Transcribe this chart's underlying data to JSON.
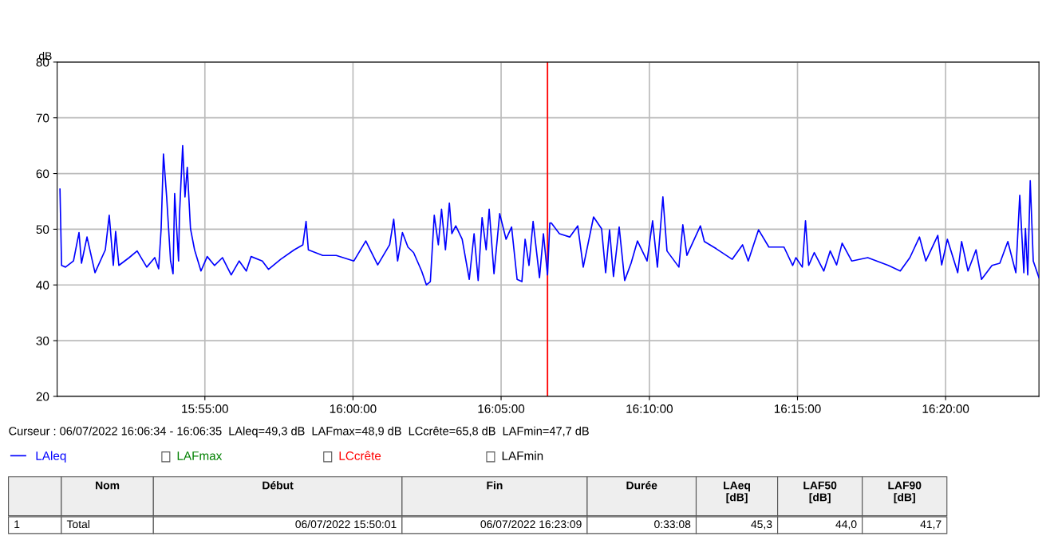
{
  "chart_data": {
    "type": "line",
    "ylabel": "dB",
    "grid": true,
    "legend": "bottom left",
    "marker": "none",
    "line_style": "solid",
    "xlim": [
      15.8336,
      16.3858
    ],
    "xticks": [
      {
        "value": 15.9167,
        "label": "15:55:00"
      },
      {
        "value": 16.0,
        "label": "16:00:00"
      },
      {
        "value": 16.0833,
        "label": "16:05:00"
      },
      {
        "value": 16.1667,
        "label": "16:10:00"
      },
      {
        "value": 16.25,
        "label": "16:15:00"
      },
      {
        "value": 16.3333,
        "label": "16:20:00"
      }
    ],
    "ylim": [
      20,
      80
    ],
    "yticks": [
      20,
      30,
      40,
      50,
      60,
      70,
      80
    ],
    "ref_lines": [
      {
        "axis": "x",
        "value": 16.1094,
        "color": "#ff0000"
      }
    ],
    "series": [
      {
        "name": "LAleq",
        "color": "#0000ff",
        "x": [
          15.8352,
          15.8361,
          15.8383,
          15.8428,
          15.8459,
          15.8473,
          15.8504,
          15.8549,
          15.8607,
          15.8629,
          15.8652,
          15.8665,
          15.8683,
          15.8741,
          15.8786,
          15.884,
          15.8885,
          15.8907,
          15.8921,
          15.8934,
          15.8952,
          15.8974,
          15.8988,
          15.8997,
          15.9019,
          15.9024,
          15.9042,
          15.9055,
          15.9068,
          15.9086,
          15.9109,
          15.9145,
          15.918,
          15.9221,
          15.9266,
          15.9315,
          15.936,
          15.94,
          15.9427,
          15.949,
          15.9525,
          15.9593,
          15.9669,
          15.9718,
          15.9736,
          15.9749,
          15.983,
          15.9906,
          16.0005,
          16.0072,
          16.0139,
          16.0206,
          16.0229,
          16.0251,
          16.0278,
          16.0309,
          16.0341,
          16.0386,
          16.0413,
          16.0435,
          16.0457,
          16.048,
          16.0498,
          16.052,
          16.0542,
          16.0556,
          16.0578,
          16.0614,
          16.0654,
          16.0681,
          16.0704,
          16.0726,
          16.0749,
          16.0766,
          16.0793,
          16.0825,
          16.0861,
          16.0892,
          16.0923,
          16.095,
          16.0968,
          16.099,
          16.1013,
          16.1049,
          16.1071,
          16.1094,
          16.1107,
          16.1116,
          16.1161,
          16.1219,
          16.1264,
          16.1295,
          16.1353,
          16.1398,
          16.1421,
          16.1443,
          16.1465,
          16.1497,
          16.1528,
          16.1564,
          16.16,
          16.1654,
          16.1685,
          16.1712,
          16.1743,
          16.1766,
          16.1833,
          16.1855,
          16.1878,
          16.1954,
          16.1976,
          16.2043,
          16.2133,
          16.2191,
          16.2223,
          16.2281,
          16.2339,
          16.2424,
          16.2473,
          16.2491,
          16.2527,
          16.2545,
          16.2563,
          16.2594,
          16.2648,
          16.2684,
          16.272,
          16.2751,
          16.2805,
          16.2895,
          16.3011,
          16.3078,
          16.3132,
          16.3186,
          16.3222,
          16.3289,
          16.3311,
          16.3343,
          16.3401,
          16.3423,
          16.3459,
          16.3504,
          16.3535,
          16.3594,
          16.3638,
          16.3683,
          16.3728,
          16.375,
          16.3773,
          16.3782,
          16.3795,
          16.3809,
          16.3826,
          16.3858
        ],
        "values": [
          57.2,
          43.5,
          43.2,
          44.3,
          49.4,
          43.9,
          48.6,
          42.2,
          46.3,
          52.5,
          43.5,
          49.6,
          43.5,
          44.9,
          46.1,
          43.2,
          44.9,
          42.9,
          50.1,
          63.5,
          55.8,
          44.3,
          42.0,
          56.4,
          44.3,
          52.5,
          65.0,
          55.8,
          61.1,
          50.1,
          46.3,
          42.5,
          45.1,
          43.5,
          44.9,
          41.8,
          44.3,
          42.5,
          45.1,
          44.3,
          42.8,
          44.6,
          46.3,
          47.2,
          51.4,
          46.3,
          45.3,
          45.3,
          44.3,
          47.9,
          43.6,
          47.2,
          51.8,
          44.3,
          49.4,
          46.8,
          45.8,
          42.5,
          40.0,
          40.6,
          52.5,
          47.2,
          53.6,
          46.3,
          54.7,
          49.2,
          50.6,
          48.2,
          41.0,
          49.2,
          40.8,
          52.1,
          46.3,
          53.6,
          42.0,
          52.8,
          48.2,
          50.4,
          41.0,
          40.6,
          48.2,
          43.5,
          51.4,
          41.3,
          49.2,
          41.8,
          51.1,
          51.1,
          49.2,
          48.6,
          50.6,
          43.2,
          52.2,
          50.1,
          42.2,
          49.9,
          41.5,
          50.4,
          40.8,
          43.9,
          47.9,
          44.3,
          51.5,
          43.2,
          55.8,
          46.1,
          43.2,
          50.8,
          45.3,
          50.6,
          47.8,
          46.5,
          44.6,
          47.2,
          44.3,
          49.9,
          46.8,
          46.8,
          43.5,
          44.9,
          43.2,
          51.5,
          43.5,
          45.8,
          42.5,
          46.1,
          43.6,
          47.5,
          44.3,
          44.9,
          43.5,
          42.5,
          44.9,
          48.6,
          44.3,
          48.9,
          43.6,
          48.2,
          42.2,
          47.8,
          42.5,
          46.3,
          41.0,
          43.5,
          43.9,
          47.8,
          42.2,
          56.1,
          42.2,
          50.1,
          41.8,
          58.7,
          44.3,
          41.3
        ]
      }
    ],
    "annotations": [
      "Curseur : 06/07/2022 16:06:34 - 16:06:35  LAleq=49,3 dB  LAFmax=48,9 dB  LCcrête=65,8 dB  LAFmin=47,7 dB",
      "LAFmax",
      "LCcrête",
      "LAFmin",
      "Nom",
      "Début",
      "Fin",
      "Durée",
      "LAeq\n[dB]",
      "LAF50\n[dB]",
      "LAF90\n[dB]",
      "1",
      "Total",
      "06/07/2022 15:50:01",
      "06/07/2022 16:23:09",
      "0:33:08",
      "45,3",
      "44,0",
      "41,7"
    ]
  }
}
